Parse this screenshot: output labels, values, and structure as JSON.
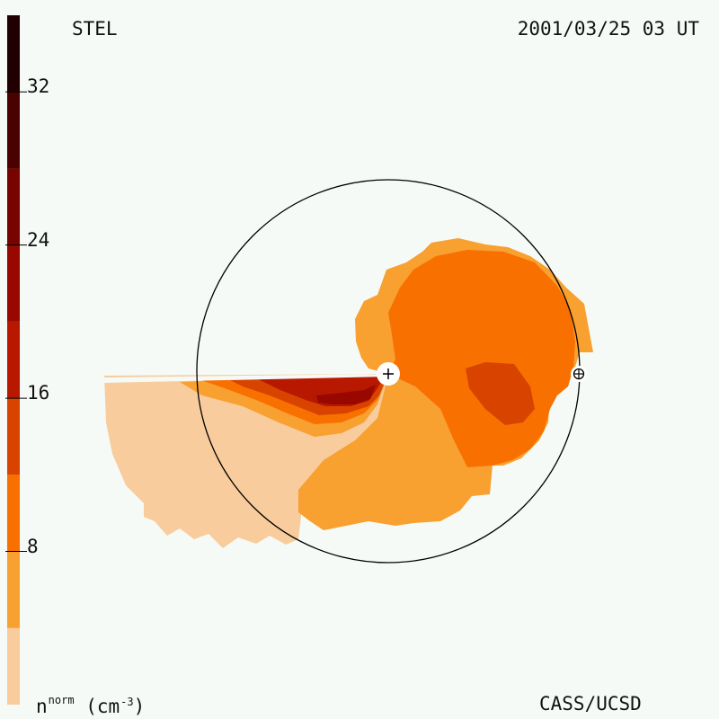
{
  "header": {
    "title_left": "STEL",
    "title_right": "2001/03/25 03 UT"
  },
  "footer": {
    "credit": "CASS/UCSD",
    "unit_sym": "n",
    "unit_sup": "norm",
    "unit_paren": "(cm",
    "unit_exp": "-3",
    "unit_close": ")"
  },
  "chart_data": {
    "type": "heatmap",
    "title": "STEL",
    "subtitle": "2001/03/25 03 UT",
    "colorbar": {
      "label": "n norm (cm-3)",
      "range": [
        0,
        36
      ],
      "ticks": [
        8,
        16,
        24,
        32
      ],
      "tick_labels": [
        "8",
        "16",
        "24",
        "32"
      ],
      "levels": [
        {
          "min": 0,
          "max": 4,
          "color": "#f8cc9c"
        },
        {
          "min": 4,
          "max": 8,
          "color": "#f8a030"
        },
        {
          "min": 8,
          "max": 12,
          "color": "#f87000"
        },
        {
          "min": 12,
          "max": 16,
          "color": "#d84400"
        },
        {
          "min": 16,
          "max": 20,
          "color": "#b81800"
        },
        {
          "min": 20,
          "max": 24,
          "color": "#980800"
        },
        {
          "min": 24,
          "max": 28,
          "color": "#780400"
        },
        {
          "min": 28,
          "max": 32,
          "color": "#4a0200"
        },
        {
          "min": 32,
          "max": 36,
          "color": "#200000"
        }
      ]
    },
    "markers": [
      {
        "name": "Sun",
        "symbol": "+"
      },
      {
        "name": "Earth",
        "symbol": "⊕"
      }
    ],
    "reference_circle": "Earth orbit (1 AU)"
  }
}
